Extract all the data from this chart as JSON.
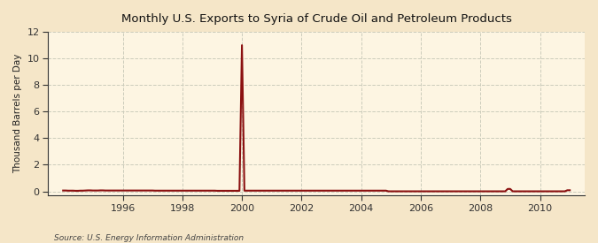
{
  "title": "Monthly U.S. Exports to Syria of Crude Oil and Petroleum Products",
  "ylabel": "Thousand Barrels per Day",
  "source": "Source: U.S. Energy Information Administration",
  "xlim": [
    1993.5,
    2011.5
  ],
  "ylim": [
    -0.3,
    12
  ],
  "yticks": [
    0,
    2,
    4,
    6,
    8,
    10,
    12
  ],
  "xticks": [
    1996,
    1998,
    2000,
    2002,
    2004,
    2006,
    2008,
    2010
  ],
  "background_color": "#f5e6c8",
  "plot_bg_color": "#fdf5e2",
  "line_color": "#8b1010",
  "grid_color": "#ccccbb",
  "spine_color": "#333333",
  "tick_color": "#333333",
  "data_x": [
    1994.0,
    1994.083,
    1994.167,
    1994.25,
    1994.333,
    1994.417,
    1994.5,
    1994.583,
    1994.667,
    1994.75,
    1994.833,
    1994.917,
    1995.0,
    1995.083,
    1995.167,
    1995.25,
    1995.333,
    1995.417,
    1995.5,
    1995.583,
    1995.667,
    1995.75,
    1995.833,
    1995.917,
    1996.0,
    1996.083,
    1996.167,
    1996.25,
    1996.333,
    1996.417,
    1996.5,
    1996.583,
    1996.667,
    1996.75,
    1996.833,
    1996.917,
    1997.0,
    1997.083,
    1997.167,
    1997.25,
    1997.333,
    1997.417,
    1997.5,
    1997.583,
    1997.667,
    1997.75,
    1997.833,
    1997.917,
    1998.0,
    1998.083,
    1998.167,
    1998.25,
    1998.333,
    1998.417,
    1998.5,
    1998.583,
    1998.667,
    1998.75,
    1998.833,
    1998.917,
    1999.0,
    1999.083,
    1999.167,
    1999.25,
    1999.333,
    1999.417,
    1999.5,
    1999.583,
    1999.667,
    1999.75,
    1999.833,
    1999.917,
    2000.0,
    2000.083,
    2000.167,
    2000.25,
    2000.333,
    2000.417,
    2000.5,
    2000.583,
    2000.667,
    2000.75,
    2000.833,
    2000.917,
    2001.0,
    2001.083,
    2001.167,
    2001.25,
    2001.333,
    2001.417,
    2001.5,
    2001.583,
    2001.667,
    2001.75,
    2001.833,
    2001.917,
    2002.0,
    2002.083,
    2002.167,
    2002.25,
    2002.333,
    2002.417,
    2002.5,
    2002.583,
    2002.667,
    2002.75,
    2002.833,
    2002.917,
    2003.0,
    2003.083,
    2003.167,
    2003.25,
    2003.333,
    2003.417,
    2003.5,
    2003.583,
    2003.667,
    2003.75,
    2003.833,
    2003.917,
    2004.0,
    2004.083,
    2004.167,
    2004.25,
    2004.333,
    2004.417,
    2004.5,
    2004.583,
    2004.667,
    2004.75,
    2004.833,
    2004.917,
    2005.0,
    2005.083,
    2005.167,
    2005.25,
    2005.333,
    2005.417,
    2005.5,
    2005.583,
    2005.667,
    2005.75,
    2005.833,
    2005.917,
    2006.0,
    2006.083,
    2006.167,
    2006.25,
    2006.333,
    2006.417,
    2006.5,
    2006.583,
    2006.667,
    2006.75,
    2006.833,
    2006.917,
    2007.0,
    2007.083,
    2007.167,
    2007.25,
    2007.333,
    2007.417,
    2007.5,
    2007.583,
    2007.667,
    2007.75,
    2007.833,
    2007.917,
    2008.0,
    2008.083,
    2008.167,
    2008.25,
    2008.333,
    2008.417,
    2008.5,
    2008.583,
    2008.667,
    2008.75,
    2008.833,
    2008.917,
    2009.0,
    2009.083,
    2009.167,
    2009.25,
    2009.333,
    2009.417,
    2009.5,
    2009.583,
    2009.667,
    2009.75,
    2009.833,
    2009.917,
    2010.0,
    2010.083,
    2010.167,
    2010.25,
    2010.333,
    2010.417,
    2010.5,
    2010.583,
    2010.667,
    2010.75,
    2010.833,
    2010.917,
    2011.0
  ],
  "data_y": [
    0.06,
    0.06,
    0.05,
    0.05,
    0.05,
    0.04,
    0.04,
    0.05,
    0.05,
    0.06,
    0.07,
    0.07,
    0.06,
    0.06,
    0.06,
    0.07,
    0.07,
    0.06,
    0.06,
    0.06,
    0.06,
    0.06,
    0.06,
    0.06,
    0.06,
    0.06,
    0.06,
    0.06,
    0.06,
    0.06,
    0.06,
    0.06,
    0.06,
    0.06,
    0.06,
    0.06,
    0.06,
    0.05,
    0.05,
    0.05,
    0.05,
    0.05,
    0.05,
    0.05,
    0.05,
    0.05,
    0.05,
    0.05,
    0.05,
    0.05,
    0.05,
    0.05,
    0.05,
    0.05,
    0.05,
    0.05,
    0.05,
    0.05,
    0.05,
    0.05,
    0.05,
    0.05,
    0.04,
    0.04,
    0.04,
    0.04,
    0.04,
    0.04,
    0.04,
    0.04,
    0.04,
    0.04,
    11.0,
    0.05,
    0.05,
    0.05,
    0.05,
    0.05,
    0.05,
    0.05,
    0.05,
    0.05,
    0.05,
    0.05,
    0.05,
    0.05,
    0.05,
    0.05,
    0.05,
    0.05,
    0.05,
    0.05,
    0.05,
    0.05,
    0.05,
    0.05,
    0.05,
    0.05,
    0.05,
    0.05,
    0.05,
    0.05,
    0.05,
    0.05,
    0.05,
    0.05,
    0.05,
    0.05,
    0.05,
    0.05,
    0.05,
    0.05,
    0.05,
    0.05,
    0.05,
    0.05,
    0.05,
    0.05,
    0.05,
    0.05,
    0.05,
    0.05,
    0.05,
    0.05,
    0.05,
    0.05,
    0.05,
    0.05,
    0.05,
    0.05,
    0.05,
    0.0,
    0.0,
    0.0,
    0.0,
    0.0,
    0.0,
    0.0,
    0.0,
    0.0,
    0.0,
    0.0,
    0.0,
    0.0,
    0.0,
    0.0,
    0.0,
    0.0,
    0.0,
    0.0,
    0.0,
    0.0,
    0.0,
    0.0,
    0.0,
    0.0,
    0.0,
    0.0,
    0.0,
    0.0,
    0.0,
    0.0,
    0.0,
    0.0,
    0.0,
    0.0,
    0.0,
    0.0,
    0.0,
    0.0,
    0.0,
    0.0,
    0.0,
    0.0,
    0.0,
    0.0,
    0.0,
    0.0,
    0.0,
    0.18,
    0.18,
    0.0,
    0.0,
    0.0,
    0.0,
    0.0,
    0.0,
    0.0,
    0.0,
    0.0,
    0.0,
    0.0,
    0.0,
    0.0,
    0.0,
    0.0,
    0.0,
    0.0,
    0.0,
    0.0,
    0.0,
    0.0,
    0.0,
    0.08,
    0.08
  ]
}
